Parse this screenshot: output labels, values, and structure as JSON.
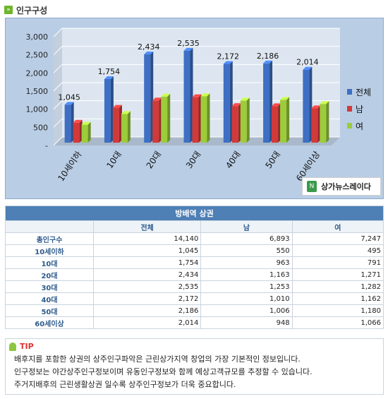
{
  "header": {
    "title": "인구구성",
    "icon": "arrow-icon"
  },
  "brand": {
    "name": "상가뉴스레이다"
  },
  "chart_data": {
    "type": "bar",
    "categories": [
      "10세이하",
      "10대",
      "20대",
      "30대",
      "40대",
      "50대",
      "60세이상"
    ],
    "series": [
      {
        "name": "전체",
        "color": "#3e6fc4",
        "values": [
          1045,
          1754,
          2434,
          2535,
          2172,
          2186,
          2014
        ]
      },
      {
        "name": "남",
        "color": "#d23a3a",
        "values": [
          550,
          963,
          1163,
          1253,
          1010,
          1006,
          948
        ]
      },
      {
        "name": "여",
        "color": "#9ccc3a",
        "values": [
          495,
          791,
          1271,
          1282,
          1162,
          1180,
          1066
        ]
      }
    ],
    "data_labels": [
      "1,045",
      "1,754",
      "2,434",
      "2,535",
      "2,172",
      "2,186",
      "2,014"
    ],
    "yticks": [
      "-",
      "500",
      "1,000",
      "1,500",
      "2,000",
      "2,500",
      "3,000"
    ],
    "ylim": [
      0,
      3000
    ],
    "legend_position": "right",
    "grid": true
  },
  "table": {
    "caption": "방배역 상권",
    "headers": [
      "",
      "전체",
      "남",
      "여"
    ],
    "rows": [
      {
        "label": "총인구수",
        "total": "14,140",
        "male": "6,893",
        "female": "7,247"
      },
      {
        "label": "10세이하",
        "total": "1,045",
        "male": "550",
        "female": "495"
      },
      {
        "label": "10대",
        "total": "1,754",
        "male": "963",
        "female": "791"
      },
      {
        "label": "20대",
        "total": "2,434",
        "male": "1,163",
        "female": "1,271"
      },
      {
        "label": "30대",
        "total": "2,535",
        "male": "1,253",
        "female": "1,282"
      },
      {
        "label": "40대",
        "total": "2,172",
        "male": "1,010",
        "female": "1,162"
      },
      {
        "label": "50대",
        "total": "2,186",
        "male": "1,006",
        "female": "1,180"
      },
      {
        "label": "60세이상",
        "total": "2,014",
        "male": "948",
        "female": "1,066"
      }
    ]
  },
  "tip": {
    "label": "TIP",
    "lines": [
      "배후지를 포함한 상권의 상주인구파악은 근린상가지역 창업의 가장 기본적인 정보입니다.",
      "인구정보는 야간상주인구정보이며 유동인구정보와 함께 예상고객규모를 추정할 수 있습니다.",
      "주거지배후의 근린생활상권 일수록 상주인구정보가 더욱 중요합니다."
    ]
  }
}
